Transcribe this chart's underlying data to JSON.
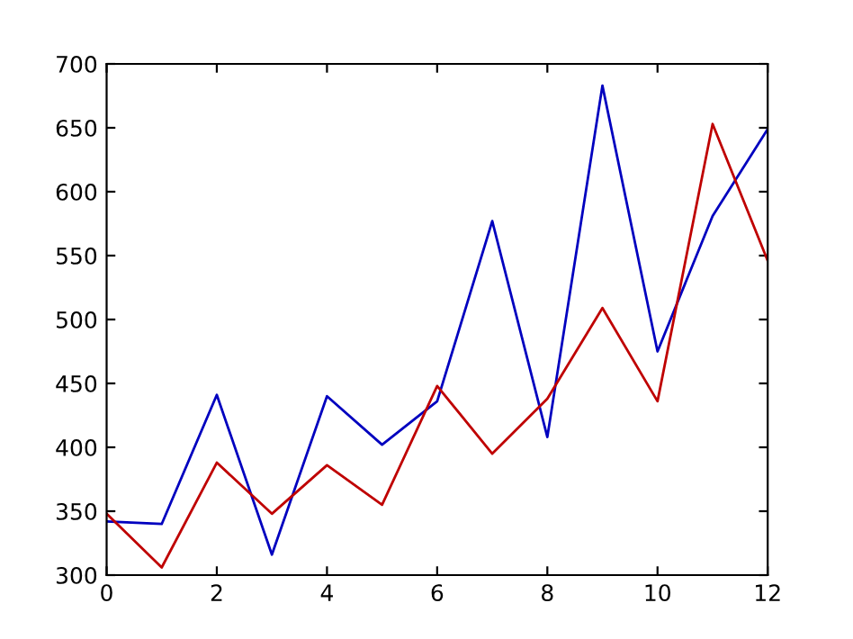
{
  "chart_data": {
    "type": "line",
    "x": [
      0,
      1,
      2,
      3,
      4,
      5,
      6,
      7,
      8,
      9,
      10,
      11,
      12
    ],
    "series": [
      {
        "color": "#0000bf",
        "values": [
          342,
          340,
          441,
          316,
          440,
          402,
          436,
          577,
          408,
          683,
          475,
          581,
          649
        ]
      },
      {
        "color": "#bf0000",
        "values": [
          348,
          306,
          388,
          348,
          386,
          355,
          448,
          395,
          438,
          509,
          436,
          653,
          546
        ]
      }
    ],
    "xlim": [
      0,
      12
    ],
    "xticks": [
      0,
      2,
      4,
      6,
      8,
      10,
      12
    ],
    "ylim": [
      300,
      700
    ],
    "yticks": [
      300,
      350,
      400,
      450,
      500,
      550,
      600,
      650,
      700
    ],
    "grid": false,
    "marker": "none",
    "line_style": "solid"
  }
}
